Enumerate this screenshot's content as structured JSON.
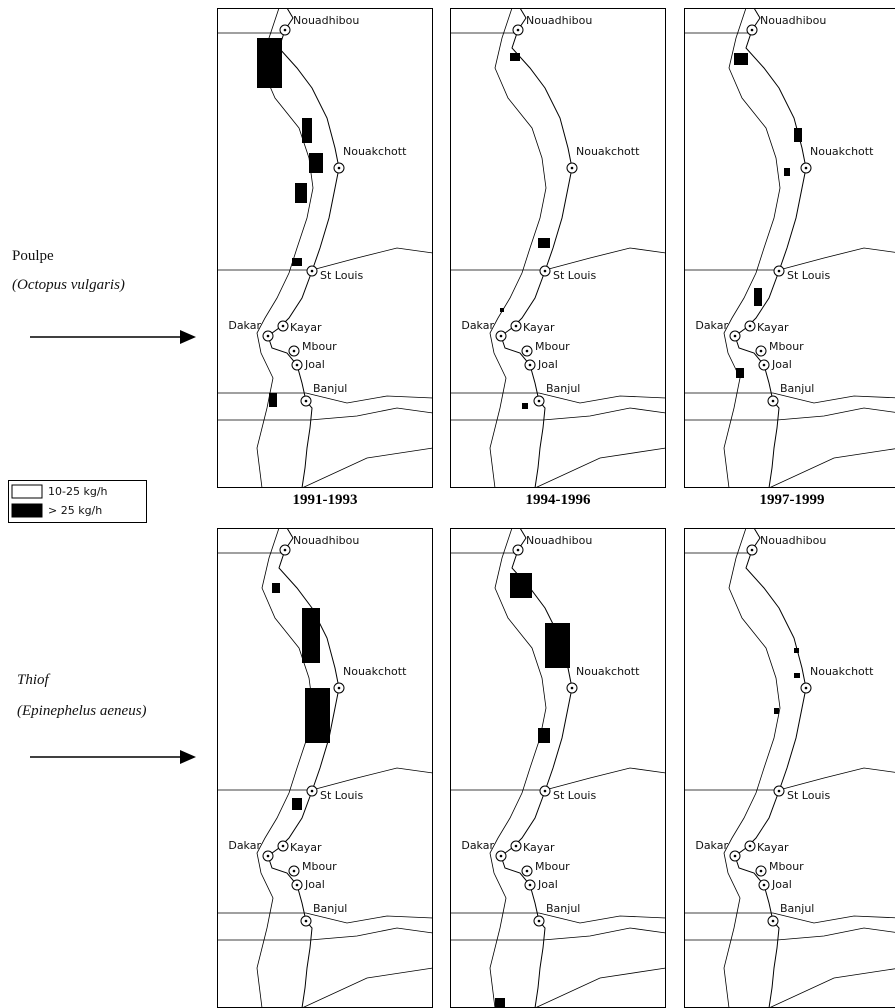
{
  "rows": [
    {
      "name": "Poulpe",
      "latin": "(Octopus vulgaris)"
    },
    {
      "name": "Thiof",
      "latin": "(Epinephelus aeneus)"
    }
  ],
  "periods": [
    "1991-1993",
    "1994-1996",
    "1997-1999"
  ],
  "legend": [
    "10-25 kg/h",
    "> 25 kg/h"
  ],
  "cities": [
    "Nouadhibou",
    "Nouakchott",
    "St Louis",
    "Dakar",
    "Kayar",
    "Mbour",
    "Joal",
    "Banjul"
  ]
}
